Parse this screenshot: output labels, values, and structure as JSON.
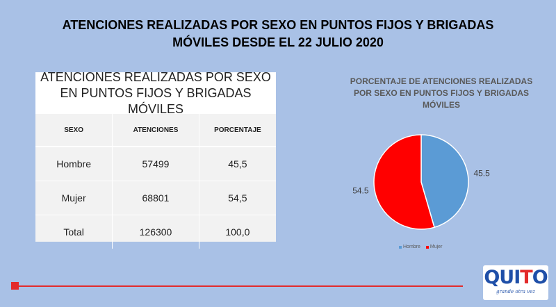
{
  "slide": {
    "title_line1": "ATENCIONES REALIZADAS POR SEXO EN PUNTOS FIJOS Y BRIGADAS",
    "title_line2": "MÓVILES DESDE EL 22 JULIO 2020"
  },
  "table": {
    "title": "ATENCIONES REALIZADAS POR SEXO EN PUNTOS FIJOS Y BRIGADAS MÓVILES",
    "headers": [
      "SEXO",
      "ATENCIONES",
      "PORCENTAJE"
    ],
    "rows": [
      [
        "Hombre",
        "57499",
        "45,5"
      ],
      [
        "Mujer",
        "68801",
        "54,5"
      ],
      [
        "Total",
        "126300",
        "100,0"
      ]
    ]
  },
  "chart_data": {
    "type": "pie",
    "title": "PORCENTAJE DE ATENCIONES REALIZADAS POR SEXO EN PUNTOS FIJOS Y BRIGADAS MÓVILES",
    "categories": [
      "Hombre",
      "Mujer"
    ],
    "values": [
      45.5,
      54.5
    ],
    "labels": [
      "45.5",
      "54.5"
    ],
    "colors": [
      "#5b9bd5",
      "#ff0000"
    ],
    "legend_position": "bottom"
  },
  "logo": {
    "word_a": "QUI",
    "word_b": "T",
    "word_c": "O",
    "tagline": "grande otra vez"
  }
}
